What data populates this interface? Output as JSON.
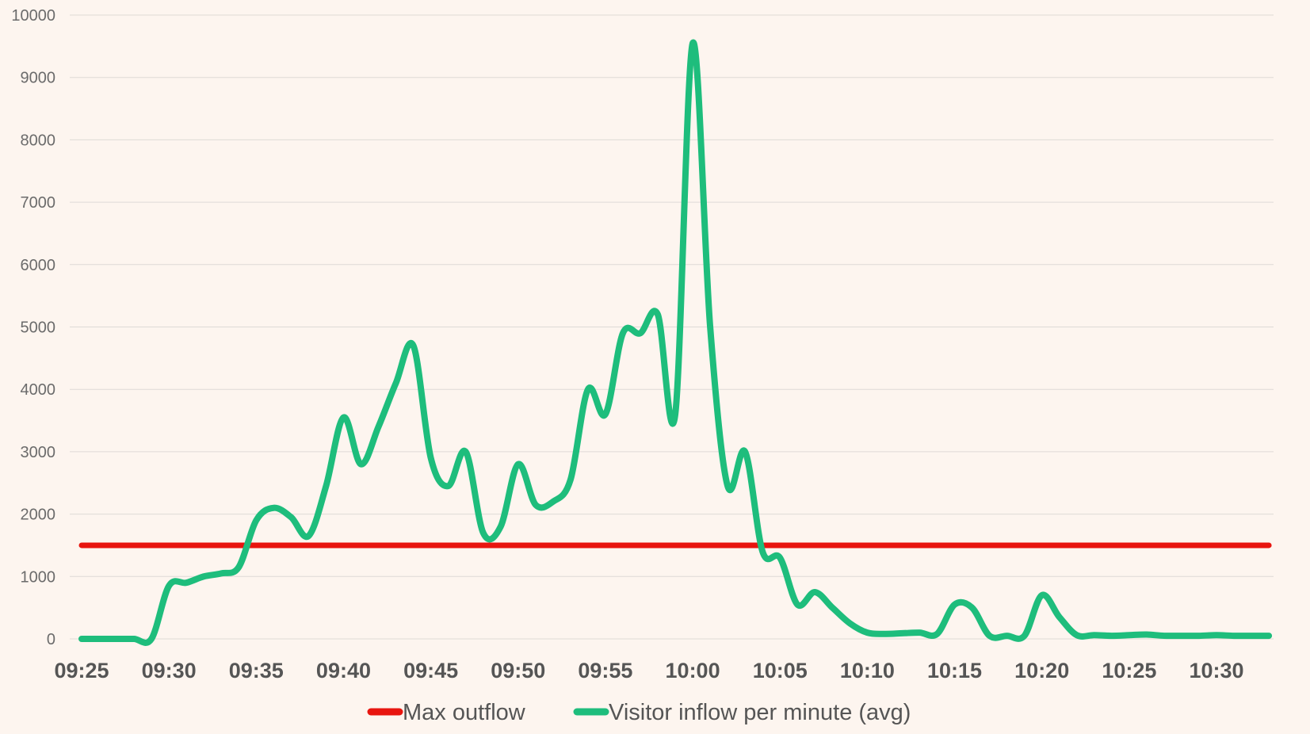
{
  "chart_data": {
    "type": "line",
    "title": "",
    "xlabel": "",
    "ylabel": "",
    "ylim": [
      0,
      10000
    ],
    "yticks": [
      0,
      1000,
      2000,
      3000,
      4000,
      5000,
      6000,
      7000,
      8000,
      9000,
      10000
    ],
    "ytick_labels": [
      "0",
      "1000",
      "2000",
      "3000",
      "4000",
      "5000",
      "6000",
      "7000",
      "8000",
      "9000",
      "10000"
    ],
    "xticks": [
      "09:25",
      "09:30",
      "09:35",
      "09:40",
      "09:45",
      "09:50",
      "09:55",
      "10:00",
      "10:05",
      "10:10",
      "10:15",
      "10:20",
      "10:25",
      "10:30"
    ],
    "grid": true,
    "legend_position": "bottom",
    "series": [
      {
        "name": "Max outflow",
        "color": "#e8150f",
        "x": [
          "09:25",
          "10:33"
        ],
        "values": [
          1500,
          1500
        ]
      },
      {
        "name": "Visitor inflow per minute (avg)",
        "color": "#1ebd7c",
        "x": [
          "09:25",
          "09:26",
          "09:27",
          "09:28",
          "09:29",
          "09:30",
          "09:31",
          "09:32",
          "09:33",
          "09:34",
          "09:35",
          "09:36",
          "09:37",
          "09:38",
          "09:39",
          "09:40",
          "09:41",
          "09:42",
          "09:43",
          "09:44",
          "09:45",
          "09:46",
          "09:47",
          "09:48",
          "09:49",
          "09:50",
          "09:51",
          "09:52",
          "09:53",
          "09:54",
          "09:55",
          "09:56",
          "09:57",
          "09:58",
          "09:59",
          "10:00",
          "10:01",
          "10:02",
          "10:03",
          "10:04",
          "10:05",
          "10:06",
          "10:07",
          "10:08",
          "10:09",
          "10:10",
          "10:11",
          "10:12",
          "10:13",
          "10:14",
          "10:15",
          "10:16",
          "10:17",
          "10:18",
          "10:19",
          "10:20",
          "10:21",
          "10:22",
          "10:23",
          "10:24",
          "10:25",
          "10:26",
          "10:27",
          "10:28",
          "10:29",
          "10:30",
          "10:31",
          "10:32",
          "10:33"
        ],
        "values": [
          0,
          0,
          0,
          0,
          0,
          850,
          900,
          1000,
          1050,
          1150,
          1900,
          2100,
          1950,
          1650,
          2450,
          3550,
          2800,
          3400,
          4100,
          4700,
          2900,
          2450,
          3000,
          1700,
          1800,
          2800,
          2150,
          2200,
          2550,
          4000,
          3600,
          4900,
          4900,
          5200,
          3600,
          9550,
          5000,
          2450,
          3000,
          1400,
          1300,
          550,
          750,
          500,
          250,
          100,
          80,
          90,
          100,
          80,
          550,
          500,
          50,
          50,
          50,
          700,
          350,
          60,
          60,
          50,
          60,
          70,
          50,
          50,
          50,
          60,
          50,
          50,
          50
        ]
      }
    ]
  }
}
